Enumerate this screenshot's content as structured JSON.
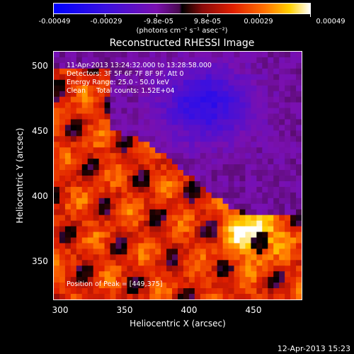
{
  "chart_data": {
    "type": "heatmap",
    "title": "Reconstructed RHESSI Image",
    "xlabel": "Heliocentric X (arcsec)",
    "ylabel": "Heliocentric Y (arcsec)",
    "xlim": [
      296,
      486
    ],
    "ylim": [
      316,
      506
    ],
    "x_ticks": [
      "300",
      "350",
      "400",
      "450"
    ],
    "y_ticks": [
      "350",
      "400",
      "450",
      "500"
    ],
    "colorbar": {
      "ticks": [
        "-0.00049",
        "-0.00029",
        "-9.8e-05",
        "9.8e-05",
        "0.00029",
        "0.00049"
      ],
      "unit_label": "(photons cm⁻² s⁻¹ asec⁻²)",
      "range": [
        -0.00049,
        0.00049
      ]
    },
    "annotations": {
      "time_range": "11-Apr-2013 13:24:32.000 to 13:28:58.000",
      "detectors": "Detectors: 3F 5F 6F 7F 8F 9F, Att 0",
      "energy_range": "Energy Range: 25.0 - 50.0 keV",
      "algorithm": "Clean     Total counts: 1.52E+04",
      "peak": "Position of Peak = [449,375]"
    },
    "peak_position": [
      449,
      375
    ],
    "grid": false
  },
  "timestamp": "12-Apr-2013 15:23"
}
